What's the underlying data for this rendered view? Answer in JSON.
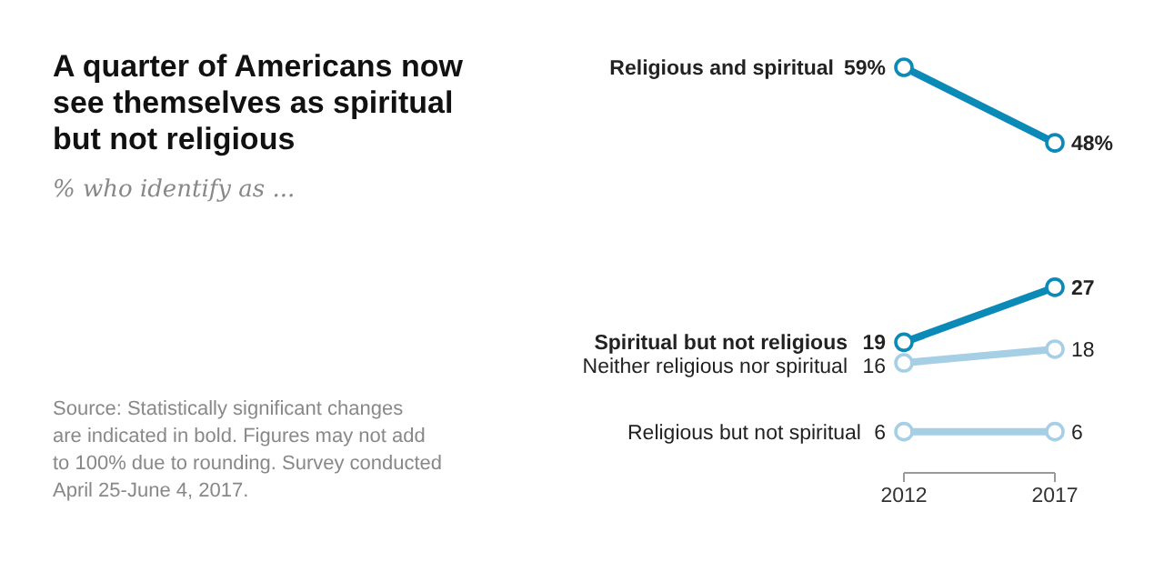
{
  "chart_data": {
    "type": "line",
    "title": "A quarter of Americans now see themselves as spiritual but not religious",
    "subtitle": "% who identify as ...",
    "categories": [
      "2012",
      "2017"
    ],
    "marker": "circle",
    "data_labels": true,
    "series": [
      {
        "name": "Religious and spiritual",
        "color": "#0b8ab8",
        "values": [
          59,
          48
        ],
        "value_labels": [
          "59%",
          "48%"
        ]
      },
      {
        "name": "Spiritual but not religious",
        "color": "#0b8ab8",
        "values": [
          19,
          27
        ],
        "value_labels": [
          "19",
          "27"
        ]
      },
      {
        "name": "Neither religious nor spiritual",
        "color": "#a6cfe6",
        "values": [
          16,
          18
        ],
        "value_labels": [
          "16",
          "18"
        ]
      },
      {
        "name": "Religious but not spiritual",
        "color": "#a6cfe6",
        "values": [
          6,
          6
        ],
        "value_labels": [
          "6",
          "6"
        ]
      }
    ],
    "annotations": [
      "Source: Statistically significant changes are indicated in bold. Figures may not add to 100% due to rounding. Survey conducted April 25-June 4, 2017."
    ]
  }
}
